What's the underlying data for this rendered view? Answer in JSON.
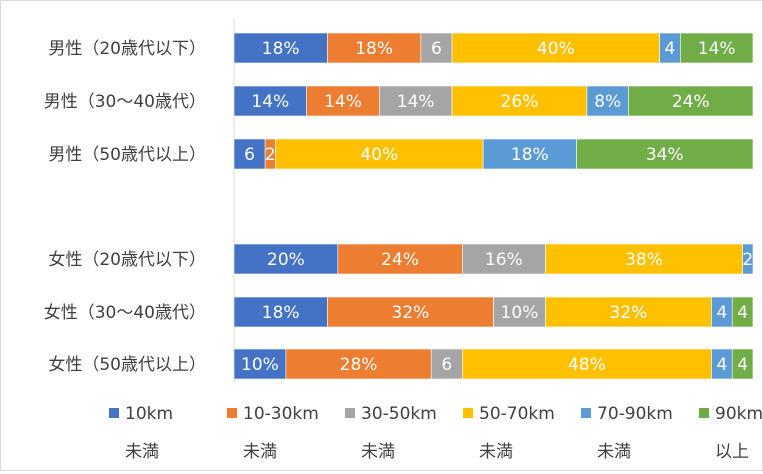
{
  "chart_data": {
    "type": "bar",
    "orientation": "horizontal",
    "stacked": "percent",
    "categories": [
      "男性（20歳代以下）",
      "男性（30～40歳代）",
      "男性（50歳代以上）",
      "女性（20歳代以下）",
      "女性（30～40歳代）",
      "女性（50歳代以上）"
    ],
    "series": [
      {
        "name": "10km未満",
        "legend_lines": [
          "10km",
          "未満"
        ],
        "color": "#4472C4",
        "values": [
          18,
          14,
          6,
          20,
          18,
          10
        ],
        "labels": [
          "18%",
          "14%",
          "6",
          "20%",
          "18%",
          "10%"
        ]
      },
      {
        "name": "10-30km未満",
        "legend_lines": [
          "10-30km",
          "未満"
        ],
        "color": "#ED7D31",
        "values": [
          18,
          14,
          2,
          24,
          32,
          28
        ],
        "labels": [
          "18%",
          "14%",
          "2",
          "24%",
          "32%",
          "28%"
        ]
      },
      {
        "name": "30-50km未満",
        "legend_lines": [
          "30-50km",
          "未満"
        ],
        "color": "#A5A5A5",
        "values": [
          6,
          14,
          0,
          16,
          10,
          6
        ],
        "labels": [
          "6",
          "14%",
          "",
          "16%",
          "10%",
          "6"
        ]
      },
      {
        "name": "50-70km未満",
        "legend_lines": [
          "50-70km",
          "未満"
        ],
        "color": "#FFC000",
        "values": [
          40,
          26,
          40,
          38,
          32,
          48
        ],
        "labels": [
          "40%",
          "26%",
          "40%",
          "38%",
          "32%",
          "48%"
        ]
      },
      {
        "name": "70-90km未満",
        "legend_lines": [
          "70-90km",
          "未満"
        ],
        "color": "#5B9BD5",
        "values": [
          4,
          8,
          18,
          2,
          4,
          4
        ],
        "labels": [
          "4",
          "8%",
          "18%",
          "2",
          "4",
          "4"
        ]
      },
      {
        "name": "90km以上",
        "legend_lines": [
          "90km",
          "以上"
        ],
        "color": "#70AD47",
        "values": [
          14,
          24,
          34,
          0,
          4,
          4
        ],
        "labels": [
          "14%",
          "24%",
          "34%",
          "",
          "4",
          "4"
        ]
      }
    ],
    "xlim": [
      0,
      100
    ],
    "grid": false,
    "legend_position": "bottom"
  }
}
